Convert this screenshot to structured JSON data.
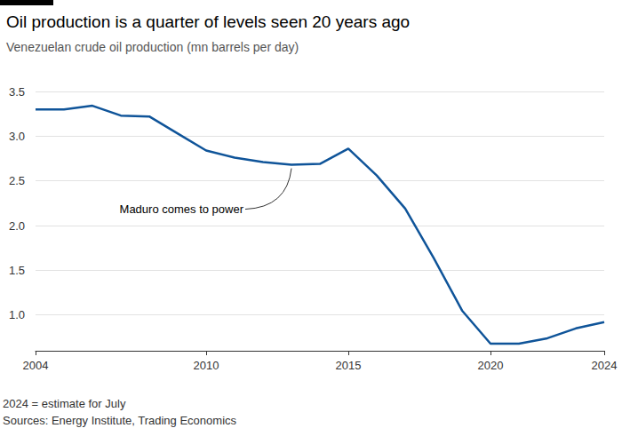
{
  "chart_data": {
    "type": "line",
    "title": "Oil production is a quarter of levels seen 20 years ago",
    "subtitle": "Venezuelan crude oil production (mn barrels per day)",
    "note": "2024 = estimate for July",
    "source": "Sources: Energy Institute, Trading Economics",
    "x": [
      2004,
      2005,
      2006,
      2007,
      2008,
      2009,
      2010,
      2011,
      2012,
      2013,
      2014,
      2015,
      2016,
      2017,
      2018,
      2019,
      2020,
      2021,
      2022,
      2023,
      2024
    ],
    "values": [
      3.3,
      3.3,
      3.34,
      3.23,
      3.22,
      3.03,
      2.84,
      2.76,
      2.71,
      2.68,
      2.69,
      2.86,
      2.56,
      2.19,
      1.64,
      1.05,
      0.68,
      0.68,
      0.74,
      0.85,
      0.92
    ],
    "color": "#0f5499",
    "xlim": [
      2004,
      2024
    ],
    "xticks": [
      2004,
      2010,
      2015,
      2020,
      2024
    ],
    "ylim": [
      0.6,
      3.5
    ],
    "yticks": [
      {
        "value": 1,
        "label": "1.0"
      },
      1.5,
      {
        "value": 2,
        "label": "2.0"
      },
      2.5,
      {
        "value": 3,
        "label": "3.0"
      },
      3.5
    ],
    "grid": true,
    "annotations": [
      {
        "text": "Maduro comes to power",
        "x": 2013,
        "y": 2.68
      }
    ]
  }
}
